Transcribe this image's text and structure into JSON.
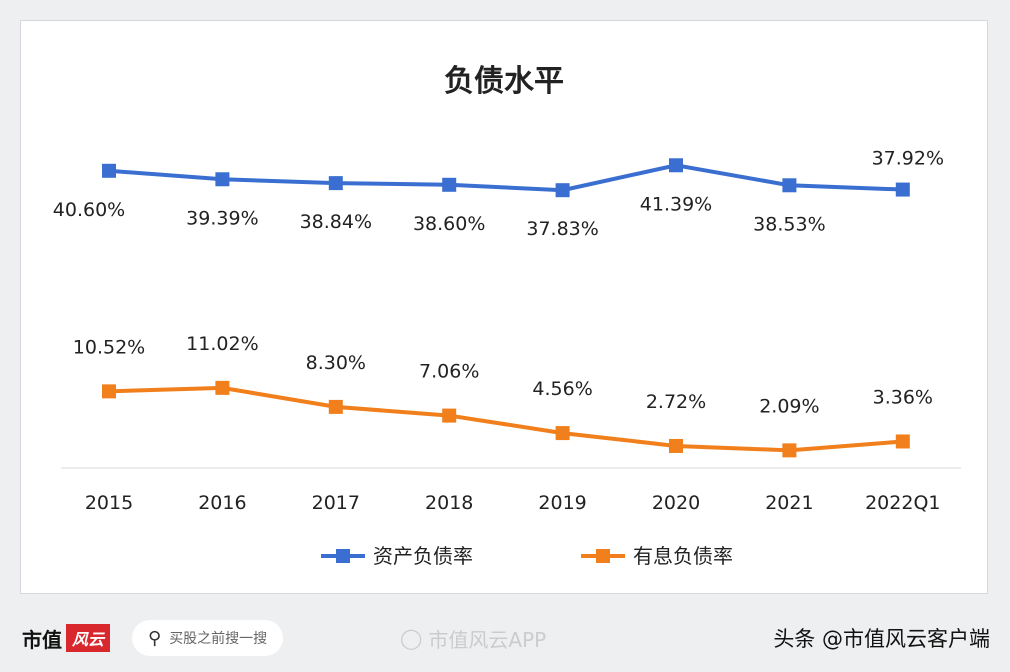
{
  "chart_data": {
    "type": "line",
    "title": "负债水平",
    "categories": [
      "2015",
      "2016",
      "2017",
      "2018",
      "2019",
      "2020",
      "2021",
      "2022Q1"
    ],
    "series": [
      {
        "name": "资产负债率",
        "color": "#3a6fd1",
        "values": [
          40.6,
          39.39,
          38.84,
          38.6,
          37.83,
          41.39,
          38.53,
          37.92
        ],
        "labels": [
          "40.60%",
          "39.39%",
          "38.84%",
          "38.60%",
          "37.83%",
          "41.39%",
          "38.53%",
          "37.92%"
        ]
      },
      {
        "name": "有息负债率",
        "color": "#f07f1c",
        "values": [
          10.52,
          11.02,
          8.3,
          7.06,
          4.56,
          2.72,
          2.09,
          3.36
        ],
        "labels": [
          "10.52%",
          "11.02%",
          "8.30%",
          "7.06%",
          "4.56%",
          "2.72%",
          "2.09%",
          "3.36%"
        ]
      }
    ],
    "legend": "bottom",
    "grid": false
  },
  "footer": {
    "brand": "市值",
    "brand_logo": "风云",
    "search": "买股之前搜一搜",
    "weibo": "市值风云APP",
    "toutiao": "头条 @市值风云客户端"
  }
}
